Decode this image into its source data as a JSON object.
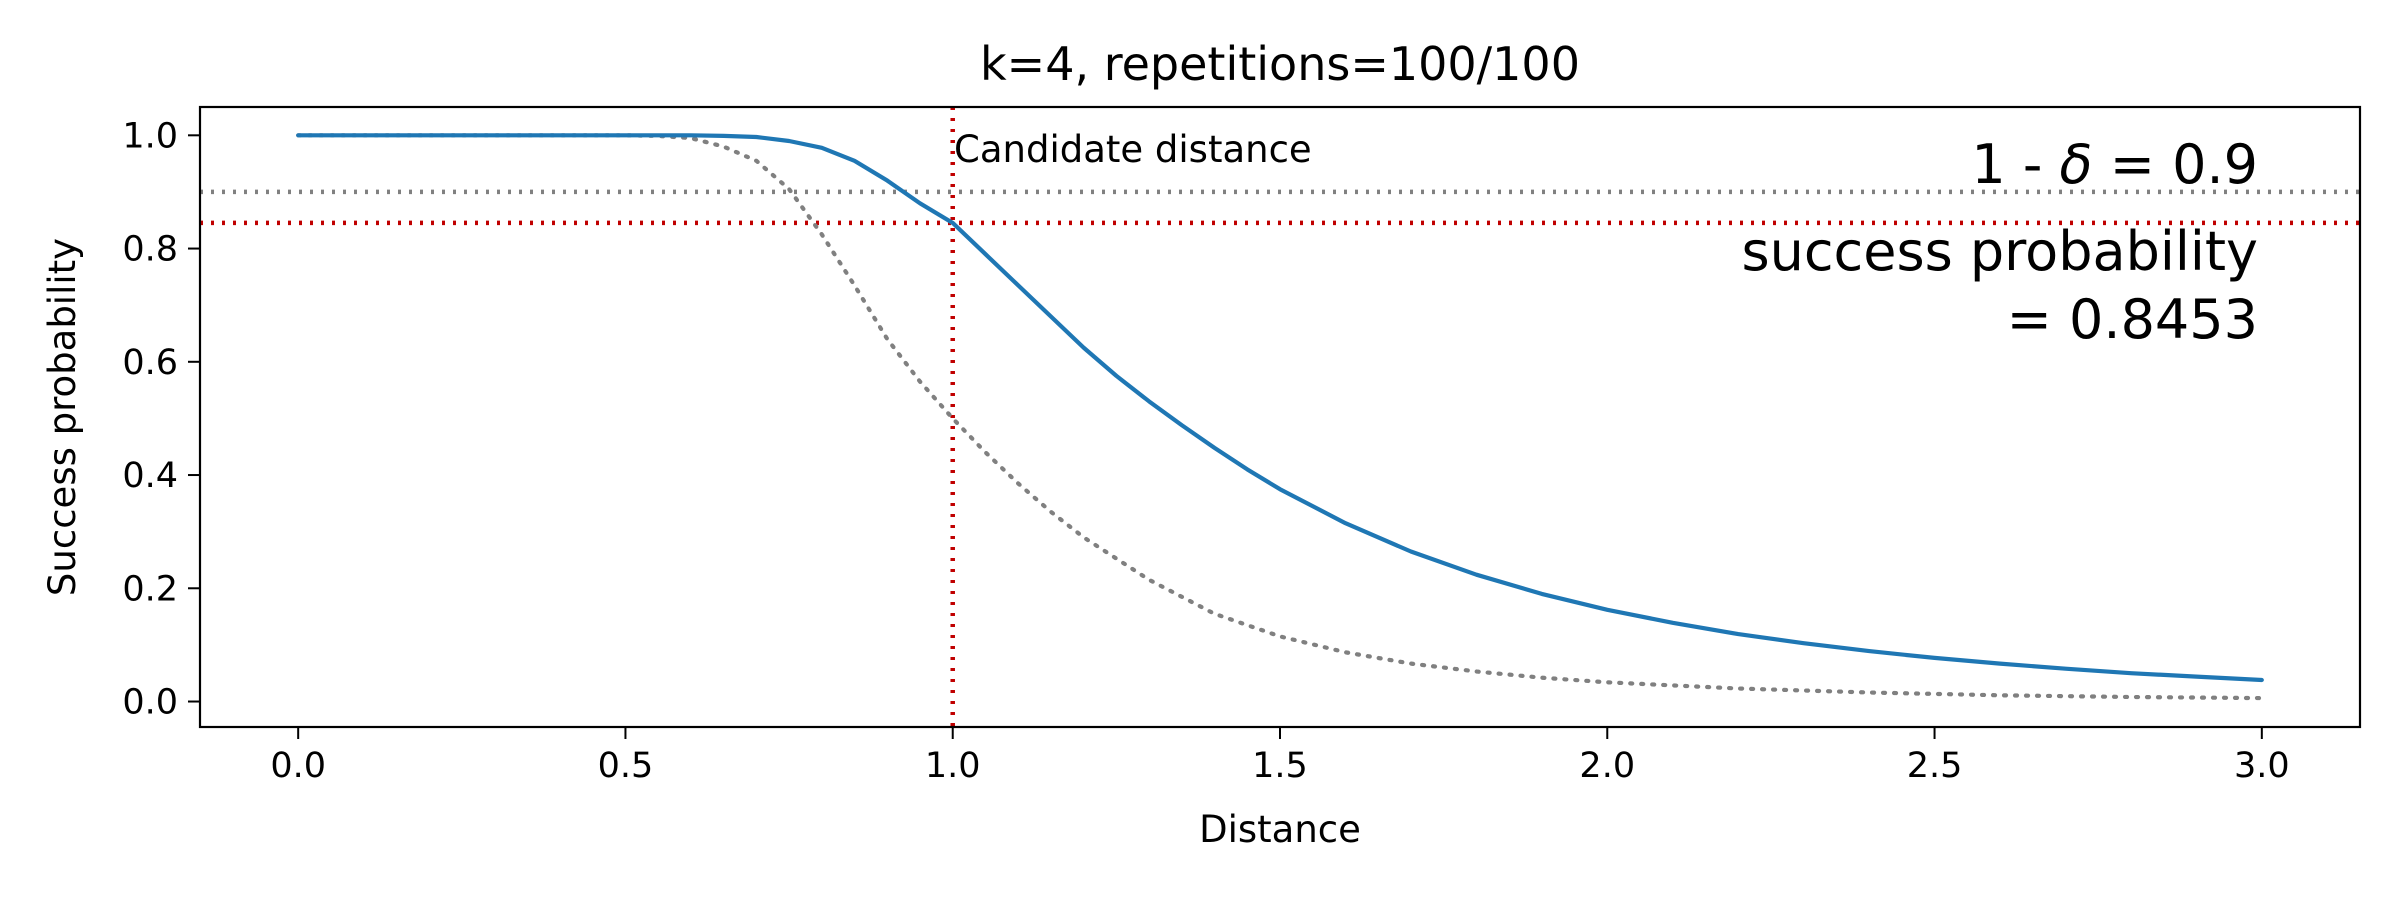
{
  "chart_data": {
    "type": "line",
    "title": "k=4, repetitions=100/100",
    "xlabel": "Distance",
    "ylabel": "Success probability",
    "xlim": [
      -0.15,
      3.15
    ],
    "ylim": [
      -0.045,
      1.05
    ],
    "xticks": [
      0.0,
      0.5,
      1.0,
      1.5,
      2.0,
      2.5,
      3.0
    ],
    "xtick_labels": [
      "0.0",
      "0.5",
      "1.0",
      "1.5",
      "2.0",
      "2.5",
      "3.0"
    ],
    "yticks": [
      0.0,
      0.2,
      0.4,
      0.6,
      0.8,
      1.0
    ],
    "ytick_labels": [
      "0.0",
      "0.2",
      "0.4",
      "0.6",
      "0.8",
      "1.0"
    ],
    "grid": false,
    "series": [
      {
        "style": "solid",
        "color": "#1f77b4",
        "x": [
          0.0,
          0.1,
          0.2,
          0.3,
          0.4,
          0.5,
          0.55,
          0.6,
          0.65,
          0.7,
          0.75,
          0.8,
          0.85,
          0.9,
          0.95,
          1.0,
          1.05,
          1.1,
          1.15,
          1.2,
          1.25,
          1.3,
          1.35,
          1.4,
          1.45,
          1.5,
          1.6,
          1.7,
          1.8,
          1.9,
          2.0,
          2.1,
          2.2,
          2.3,
          2.4,
          2.5,
          2.6,
          2.7,
          2.8,
          2.9,
          3.0
        ],
        "y": [
          1.0,
          1.0,
          1.0,
          1.0,
          1.0,
          1.0,
          1.0,
          1.0,
          0.999,
          0.997,
          0.99,
          0.978,
          0.955,
          0.92,
          0.88,
          0.8453,
          0.79,
          0.735,
          0.68,
          0.625,
          0.575,
          0.53,
          0.488,
          0.448,
          0.41,
          0.375,
          0.315,
          0.265,
          0.224,
          0.19,
          0.162,
          0.139,
          0.119,
          0.103,
          0.089,
          0.077,
          0.067,
          0.058,
          0.05,
          0.044,
          0.038
        ]
      },
      {
        "style": "dotted",
        "color": "#808080",
        "x": [
          0.0,
          0.1,
          0.2,
          0.3,
          0.4,
          0.5,
          0.55,
          0.6,
          0.65,
          0.7,
          0.75,
          0.8,
          0.85,
          0.9,
          0.95,
          1.0,
          1.05,
          1.1,
          1.15,
          1.2,
          1.3,
          1.4,
          1.5,
          1.6,
          1.7,
          1.8,
          1.9,
          2.0,
          2.2,
          2.4,
          2.6,
          2.8,
          3.0
        ],
        "y": [
          1.0,
          1.0,
          1.0,
          1.0,
          1.0,
          1.0,
          0.999,
          0.995,
          0.98,
          0.955,
          0.905,
          0.825,
          0.735,
          0.64,
          0.565,
          0.5,
          0.44,
          0.385,
          0.335,
          0.29,
          0.215,
          0.155,
          0.115,
          0.087,
          0.067,
          0.053,
          0.042,
          0.034,
          0.023,
          0.016,
          0.011,
          0.008,
          0.006
        ]
      }
    ],
    "hlines": [
      {
        "y": 0.9,
        "color": "#808080",
        "style": "dotted"
      },
      {
        "y": 0.8453,
        "color": "#c00000",
        "style": "dotted"
      }
    ],
    "vlines": [
      {
        "x": 1.0,
        "color": "#c00000",
        "style": "dotted"
      }
    ],
    "annotations": {
      "candidate": "Candidate distance",
      "delta_prefix": "1 - ",
      "delta_symbol": "δ",
      "delta_suffix": " = 0.9",
      "success_line1": "success probability",
      "success_line2": "= 0.8453"
    }
  }
}
